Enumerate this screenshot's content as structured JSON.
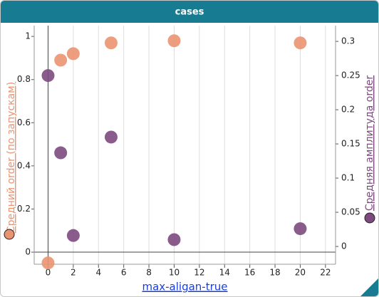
{
  "chart_data": {
    "type": "scatter",
    "title": "cases",
    "x_label": "max-aligan-true",
    "y_label": "Средний order (по запускам)",
    "y2_label": "Средняя амплитуда order",
    "xlim": [
      -1.1,
      22.8
    ],
    "xticks": [
      0,
      2,
      4,
      6,
      8,
      10,
      12,
      14,
      16,
      18,
      20,
      22
    ],
    "ylim": [
      -0.056,
      1.05
    ],
    "yticks": [
      0,
      0.2,
      0.4,
      0.6,
      0.8,
      1
    ],
    "y2lim": [
      -0.026,
      0.323
    ],
    "y2ticks": [
      0,
      0.05,
      0.1,
      0.15,
      0.2,
      0.25,
      0.3
    ],
    "grid": true,
    "series": [
      {
        "name": "Средний order (по запускам)",
        "color": "#ea9370",
        "x": [
          0,
          1,
          2,
          5,
          10,
          20
        ],
        "values": [
          -0.05,
          0.89,
          0.92,
          0.97,
          0.98,
          0.97
        ]
      },
      {
        "name": "Средняя амплитуда order",
        "color": "#7d4a80",
        "axis": "y2",
        "x": [
          0,
          1,
          2,
          5,
          10,
          20
        ],
        "values": [
          0.25,
          0.137,
          0.016,
          0.16,
          0.01,
          0.026
        ]
      }
    ]
  }
}
